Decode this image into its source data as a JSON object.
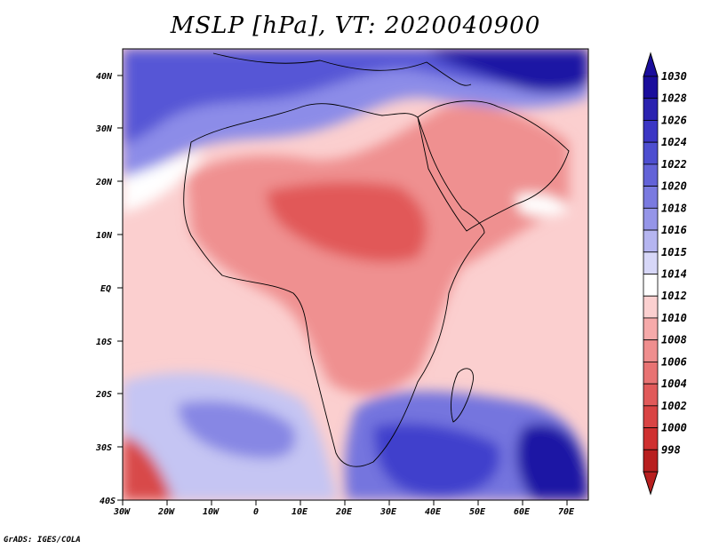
{
  "title": "MSLP [hPa], VT: 2020040900",
  "credit": "GrADS: IGES/COLA",
  "axes": {
    "lat_labels": [
      "40N",
      "30N",
      "20N",
      "10N",
      "EQ",
      "10S",
      "20S",
      "30S",
      "40S"
    ],
    "lon_labels": [
      "30W",
      "20W",
      "10W",
      "0",
      "10E",
      "20E",
      "30E",
      "40E",
      "50E",
      "60E",
      "70E"
    ]
  },
  "colorbar": {
    "levels": [
      "1030",
      "1028",
      "1026",
      "1024",
      "1022",
      "1020",
      "1018",
      "1016",
      "1015",
      "1014",
      "1012",
      "1010",
      "1008",
      "1006",
      "1004",
      "1002",
      "1000",
      "998"
    ],
    "colors": [
      "#1a0d9c",
      "#2b22b0",
      "#3b36c4",
      "#4d4ed0",
      "#6363d8",
      "#7a7ae0",
      "#9595e8",
      "#b5b5f0",
      "#d7d7f8",
      "#ffffff",
      "#fbd0d0",
      "#f6aaaa",
      "#ef8e8e",
      "#e87373",
      "#e15a5a",
      "#d94444",
      "#cf3030",
      "#b81f1f"
    ]
  },
  "colors": {
    "ocean_pink": "#fbcfcf",
    "land_red": "#ee8c8c",
    "deep_red": "#e35b5b",
    "high_blue": "#4f4fd2",
    "deep_blue": "#1b0f9e",
    "light_blue": "#b8b8f0"
  }
}
